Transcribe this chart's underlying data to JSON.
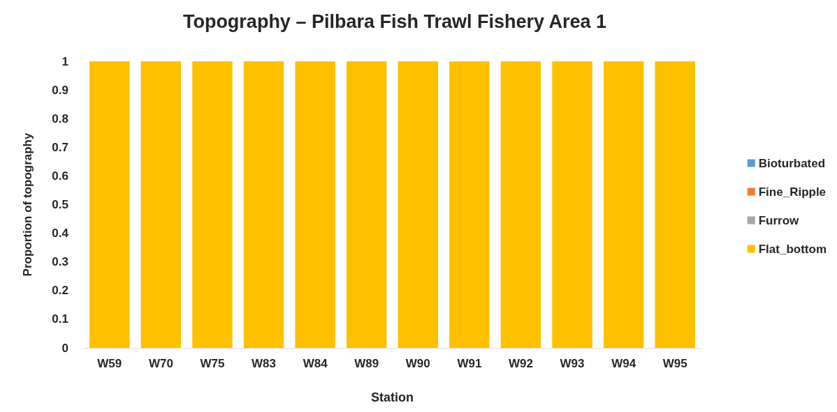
{
  "chart_data": {
    "type": "bar",
    "title": "Topography – Pilbara Fish Trawl Fishery Area 1",
    "xlabel": "Station",
    "ylabel": "Proportion of topography",
    "categories": [
      "W59",
      "W70",
      "W75",
      "W83",
      "W84",
      "W89",
      "W90",
      "W91",
      "W92",
      "W93",
      "W94",
      "W95"
    ],
    "stacked": true,
    "ylim": [
      0,
      1
    ],
    "yticks": [
      0,
      0.1,
      0.2,
      0.3,
      0.4,
      0.5,
      0.6,
      0.7,
      0.8,
      0.9,
      1
    ],
    "grid": false,
    "legend": "right",
    "series": [
      {
        "name": "Bioturbated",
        "color": "#5b9bd5",
        "values": [
          0,
          0,
          0,
          0,
          0,
          0,
          0,
          0,
          0,
          0,
          0,
          0
        ]
      },
      {
        "name": "Fine_Ripple",
        "color": "#ed7d31",
        "values": [
          0,
          0,
          0,
          0,
          0,
          0,
          0,
          0,
          0,
          0,
          0,
          0
        ]
      },
      {
        "name": "Furrow",
        "color": "#a5a5a5",
        "values": [
          0,
          0,
          0,
          0,
          0,
          0,
          0,
          0,
          0,
          0,
          0,
          0
        ]
      },
      {
        "name": "Flat_bottom",
        "color": "#ffc000",
        "values": [
          1,
          1,
          1,
          1,
          1,
          1,
          1,
          1,
          1,
          1,
          1,
          1
        ]
      }
    ]
  }
}
